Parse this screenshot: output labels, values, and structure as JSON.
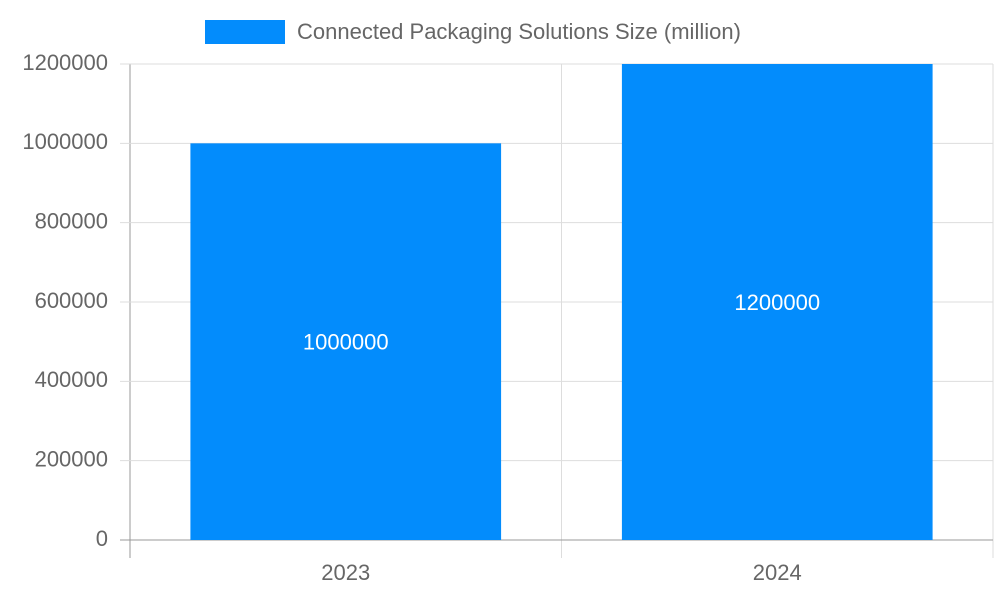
{
  "chart_data": {
    "type": "bar",
    "categories": [
      "2023",
      "2024"
    ],
    "series": [
      {
        "name": "Connected Packaging Solutions Size (million)",
        "color": "#038cfc",
        "values": [
          1000000,
          1200000
        ]
      }
    ],
    "ylim": [
      0,
      1200000
    ],
    "yticks": [
      0,
      200000,
      400000,
      600000,
      800000,
      1000000,
      1200000
    ],
    "grid": true,
    "legend": "top",
    "data_labels": true
  }
}
